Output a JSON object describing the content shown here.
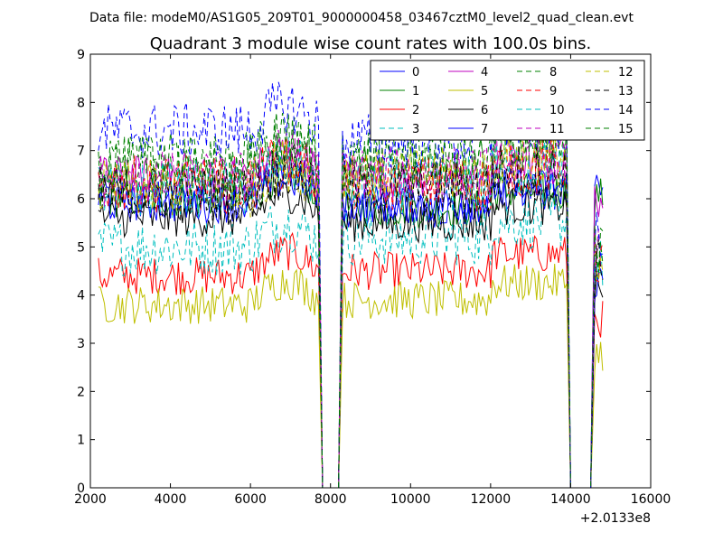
{
  "chart_data": {
    "type": "line",
    "suptitle": "Data file: modeM0/AS1G05_209T01_9000000458_03467cztM0_level2_quad_clean.evt",
    "title": "Quadrant 3 module wise count rates with 100.0s bins.",
    "xlabel": "",
    "ylabel": "",
    "x_offset_label": "+2.0133e8",
    "xlim": [
      2000,
      16000
    ],
    "ylim": [
      0,
      9
    ],
    "xticks": [
      2000,
      4000,
      6000,
      8000,
      10000,
      12000,
      14000,
      16000
    ],
    "xtick_labels": [
      "2000",
      "4000",
      "6000",
      "8000",
      "10000",
      "12000",
      "14000",
      "16000"
    ],
    "yticks": [
      0,
      1,
      2,
      3,
      4,
      5,
      6,
      7,
      8,
      9
    ],
    "ytick_labels": [
      "0",
      "1",
      "2",
      "3",
      "4",
      "5",
      "6",
      "7",
      "8",
      "9"
    ],
    "legend_position": "top-right",
    "segments": [
      [
        2200,
        7700
      ],
      [
        8300,
        13900
      ],
      [
        14600,
        14800
      ]
    ],
    "gaps": [
      [
        7800,
        8200
      ],
      [
        14000,
        14500
      ]
    ],
    "series": [
      {
        "name": "0",
        "color": "#0000ff",
        "dash": "solid",
        "levels": [
          6.1,
          5.8,
          6.1
        ]
      },
      {
        "name": "1",
        "color": "#008000",
        "dash": "solid",
        "levels": [
          6.0,
          5.8,
          6.1
        ]
      },
      {
        "name": "2",
        "color": "#ff0000",
        "dash": "solid",
        "levels": [
          4.4,
          4.5,
          3.5
        ]
      },
      {
        "name": "3",
        "color": "#00bfbf",
        "dash": "dashed",
        "levels": [
          5.0,
          5.2,
          4.6
        ]
      },
      {
        "name": "4",
        "color": "#bf00bf",
        "dash": "solid",
        "levels": [
          6.5,
          6.4,
          6.0
        ]
      },
      {
        "name": "5",
        "color": "#bfbf00",
        "dash": "solid",
        "levels": [
          3.8,
          3.9,
          2.8
        ]
      },
      {
        "name": "6",
        "color": "#000000",
        "dash": "solid",
        "levels": [
          5.6,
          5.5,
          4.1
        ]
      },
      {
        "name": "7",
        "color": "#0000ff",
        "dash": "solid",
        "levels": [
          5.9,
          5.9,
          4.3
        ]
      },
      {
        "name": "8",
        "color": "#008000",
        "dash": "dashed",
        "levels": [
          6.8,
          6.9,
          4.5
        ]
      },
      {
        "name": "9",
        "color": "#ff0000",
        "dash": "dashed",
        "levels": [
          6.3,
          6.3,
          4.8
        ]
      },
      {
        "name": "10",
        "color": "#00bfbf",
        "dash": "dashed",
        "levels": [
          6.2,
          6.3,
          4.4
        ]
      },
      {
        "name": "11",
        "color": "#bf00bf",
        "dash": "dashed",
        "levels": [
          6.4,
          6.5,
          4.9
        ]
      },
      {
        "name": "12",
        "color": "#bfbf00",
        "dash": "dashed",
        "levels": [
          6.2,
          6.5,
          4.2
        ]
      },
      {
        "name": "13",
        "color": "#000000",
        "dash": "dashed",
        "levels": [
          6.1,
          6.2,
          4.6
        ]
      },
      {
        "name": "14",
        "color": "#0000ff",
        "dash": "dashed",
        "levels": [
          7.4,
          7.2,
          5.3
        ]
      },
      {
        "name": "15",
        "color": "#008000",
        "dash": "dashed",
        "levels": [
          6.7,
          6.8,
          4.9
        ]
      }
    ]
  }
}
